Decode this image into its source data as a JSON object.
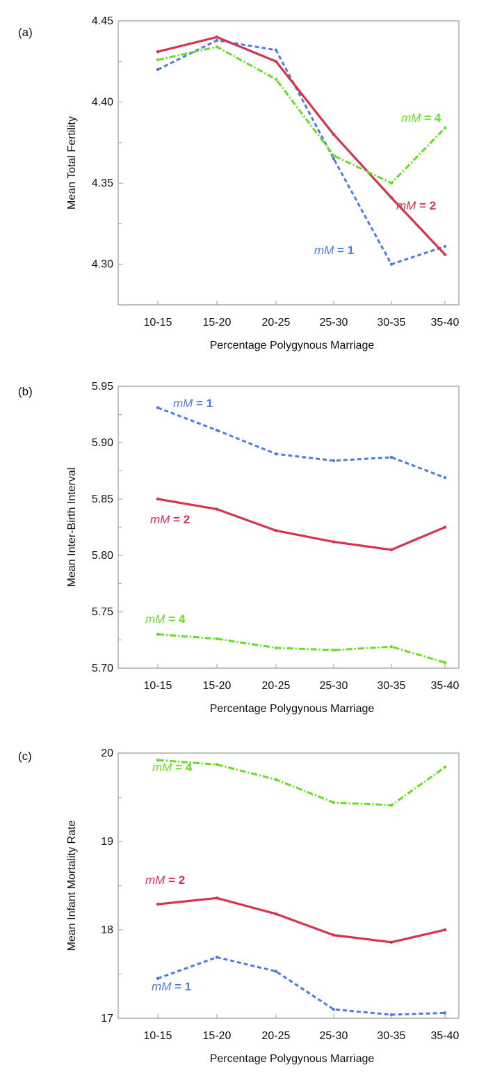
{
  "chart_data": [
    {
      "type": "line",
      "panel_label": "(a)",
      "categories": [
        "10-15",
        "15-20",
        "20-25",
        "25-30",
        "30-35",
        "35-40"
      ],
      "xlabel": "Percentage Polygynous Marriage",
      "ylabel": "Mean Total Fertility",
      "ylim": [
        4.275,
        4.45
      ],
      "yticks": [
        "4.30",
        "4.35",
        "4.40",
        "4.45"
      ],
      "grid": false,
      "series": [
        {
          "key": "mM1",
          "label_italic": "mM",
          "label_rest": " = 1",
          "color": "#4f7be0",
          "dash": "6 4",
          "values": [
            4.42,
            4.438,
            4.432,
            4.365,
            4.3,
            4.311
          ]
        },
        {
          "key": "mM2",
          "label_italic": "mM",
          "label_rest": " = 2",
          "color": "#d6334e",
          "dash": "",
          "values": [
            4.431,
            4.44,
            4.425,
            4.38,
            4.341,
            4.306
          ]
        },
        {
          "key": "mM4",
          "label_italic": "mM",
          "label_rest": " = 4",
          "color": "#66dd22",
          "dash": "9 3 2 3",
          "values": [
            4.426,
            4.434,
            4.414,
            4.367,
            4.35,
            4.384
          ]
        }
      ]
    },
    {
      "type": "line",
      "panel_label": "(b)",
      "categories": [
        "10-15",
        "15-20",
        "20-25",
        "25-30",
        "30-35",
        "35-40"
      ],
      "xlabel": "Percentage Polygynous Marriage",
      "ylabel": "Mean Inter-Birth Interval",
      "ylim": [
        5.7,
        5.95
      ],
      "yticks": [
        "5.70",
        "5.75",
        "5.80",
        "5.85",
        "5.90",
        "5.95"
      ],
      "grid": false,
      "series": [
        {
          "key": "mM1",
          "label_italic": "mM",
          "label_rest": " = 1",
          "color": "#4f7be0",
          "dash": "6 4",
          "values": [
            5.931,
            5.911,
            5.89,
            5.884,
            5.887,
            5.869
          ]
        },
        {
          "key": "mM2",
          "label_italic": "mM",
          "label_rest": " = 2",
          "color": "#d6334e",
          "dash": "",
          "values": [
            5.85,
            5.841,
            5.822,
            5.812,
            5.805,
            5.825
          ]
        },
        {
          "key": "mM4",
          "label_italic": "mM",
          "label_rest": " = 4",
          "color": "#66dd22",
          "dash": "9 3 2 3",
          "values": [
            5.73,
            5.726,
            5.718,
            5.716,
            5.719,
            5.705
          ]
        }
      ]
    },
    {
      "type": "line",
      "panel_label": "(c)",
      "categories": [
        "10-15",
        "15-20",
        "20-25",
        "25-30",
        "30-35",
        "35-40"
      ],
      "xlabel": "Percentage Polygynous Marriage",
      "ylabel": "Mean Infant Mortality Rate",
      "ylim": [
        17,
        20
      ],
      "yticks": [
        "17",
        "18",
        "19",
        "20"
      ],
      "grid": false,
      "series": [
        {
          "key": "mM1",
          "label_italic": "mM",
          "label_rest": " = 1",
          "color": "#4f7be0",
          "dash": "6 4",
          "values": [
            17.45,
            17.69,
            17.53,
            17.1,
            17.04,
            17.06
          ]
        },
        {
          "key": "mM2",
          "label_italic": "mM",
          "label_rest": " = 2",
          "color": "#d6334e",
          "dash": "",
          "values": [
            18.29,
            18.36,
            18.18,
            17.94,
            17.86,
            18.0
          ]
        },
        {
          "key": "mM4",
          "label_italic": "mM",
          "label_rest": " = 4",
          "color": "#66dd22",
          "dash": "9 3 2 3",
          "values": [
            19.92,
            19.87,
            19.7,
            19.44,
            19.41,
            19.84
          ]
        }
      ]
    }
  ]
}
